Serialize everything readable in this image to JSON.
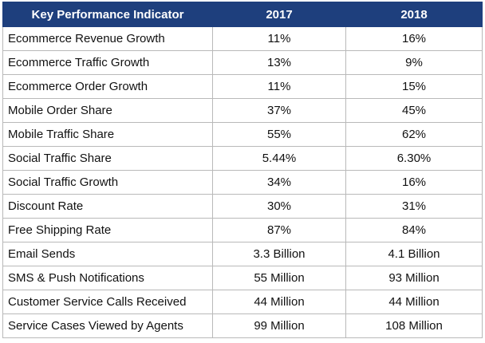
{
  "table": {
    "header": [
      "Key Performance Indicator",
      "2017",
      "2018"
    ],
    "rows": [
      [
        "Ecommerce Revenue Growth",
        "11%",
        "16%"
      ],
      [
        "Ecommerce Traffic Growth",
        "13%",
        "9%"
      ],
      [
        "Ecommerce Order Growth",
        "11%",
        "15%"
      ],
      [
        "Mobile Order Share",
        "37%",
        "45%"
      ],
      [
        "Mobile Traffic Share",
        "55%",
        "62%"
      ],
      [
        "Social Traffic Share",
        "5.44%",
        "6.30%"
      ],
      [
        "Social Traffic Growth",
        "34%",
        "16%"
      ],
      [
        "Discount Rate",
        "30%",
        "31%"
      ],
      [
        "Free Shipping Rate",
        "87%",
        "84%"
      ],
      [
        "Email Sends",
        "3.3 Billion",
        "4.1 Billion"
      ],
      [
        "SMS & Push Notifications",
        "55 Million",
        "93 Million"
      ],
      [
        "Customer Service Calls Received",
        "44 Million",
        "44 Million"
      ],
      [
        "Service Cases Viewed by Agents",
        "99 Million",
        "108 Million"
      ]
    ]
  }
}
